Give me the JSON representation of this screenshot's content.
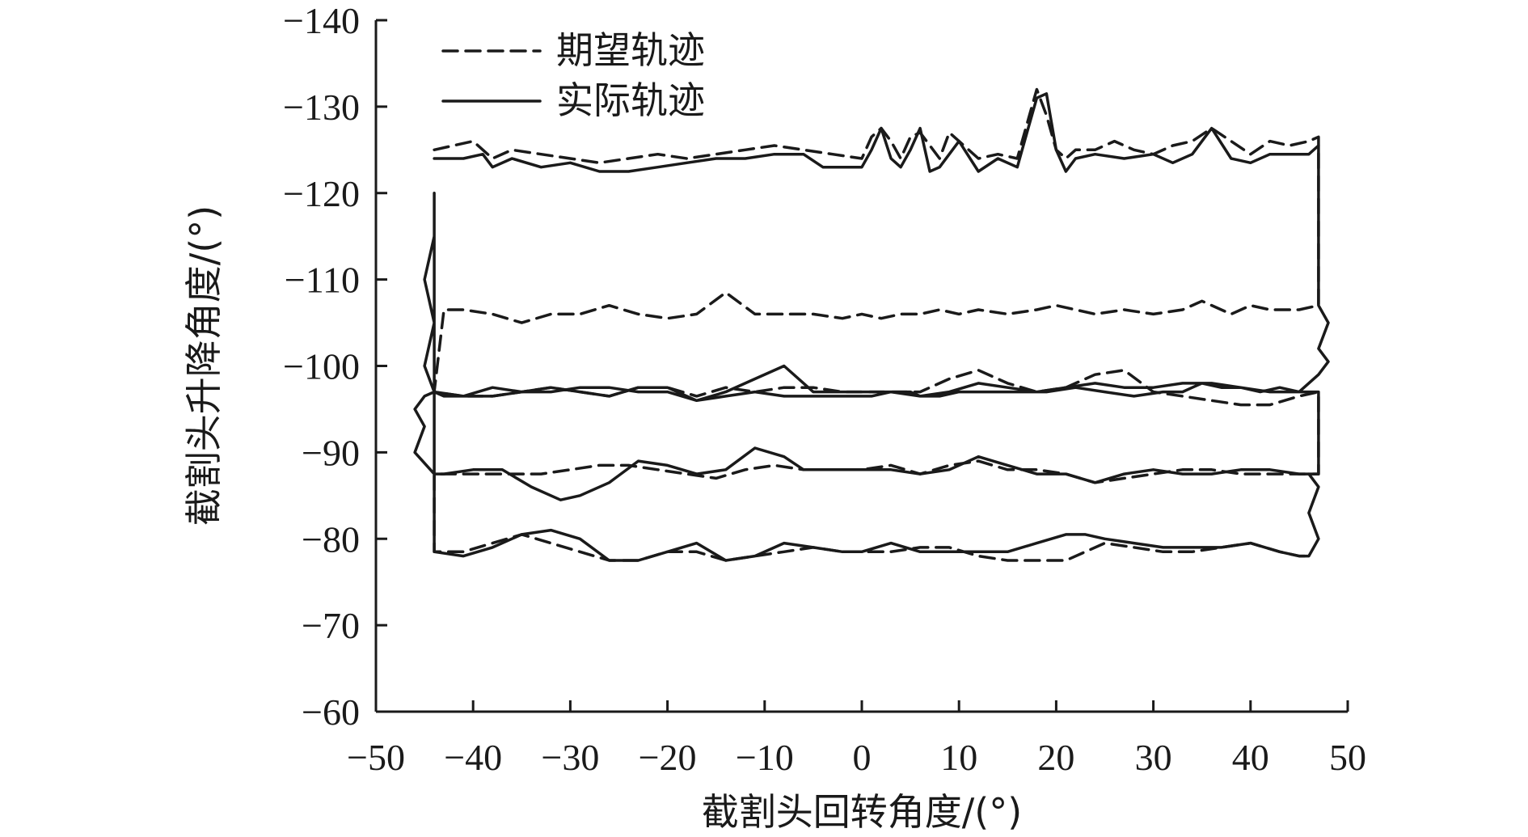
{
  "chart_data": {
    "type": "line",
    "title": "",
    "xlabel": "截割头回转角度/(°)",
    "ylabel": "截割头升降角度/(°)",
    "xlim": [
      -50,
      50
    ],
    "ylim": [
      -60,
      -140
    ],
    "xticks": [
      "−50",
      "−40",
      "−30",
      "−20",
      "−10",
      "0",
      "10",
      "20",
      "30",
      "40",
      "50"
    ],
    "yticks": [
      "−140",
      "−130",
      "−120",
      "−110",
      "−100",
      "−90",
      "−80",
      "−70",
      "−60"
    ],
    "grid": false,
    "legend_position": "top-left",
    "series": [
      {
        "name": "期望轨迹",
        "style": "dashed",
        "color": "#1a1a1a",
        "x": [
          -44,
          -40,
          -38,
          -36,
          -33,
          -30,
          -27,
          -24,
          -21,
          -18,
          -15,
          -12,
          -9,
          -6,
          -3,
          0,
          1,
          2,
          3,
          4,
          5,
          6,
          8,
          9,
          10,
          12,
          14,
          16,
          17,
          18,
          19,
          20,
          21,
          22,
          24,
          26,
          28,
          30,
          32,
          34,
          36,
          38,
          40,
          42,
          44,
          46,
          47,
          47,
          45,
          42,
          40,
          38,
          35,
          33,
          30,
          27,
          24,
          22,
          20,
          18,
          15,
          12,
          10,
          8,
          6,
          4,
          2,
          0,
          -2,
          -5,
          -8,
          -11,
          -14,
          -17,
          -20,
          -23,
          -26,
          -29,
          -32,
          -35,
          -38,
          -41,
          -43,
          -44,
          -41,
          -38,
          -35,
          -32,
          -29,
          -26,
          -23,
          -20,
          -17,
          -14,
          -11,
          -8,
          -5,
          -2,
          0,
          3,
          6,
          9,
          12,
          15,
          18,
          21,
          24,
          27,
          30,
          33,
          36,
          39,
          42,
          45,
          47,
          47,
          45,
          42,
          39,
          36,
          33,
          30,
          27,
          24,
          21,
          18,
          15,
          12,
          9,
          6,
          3,
          0,
          -3,
          -6,
          -9,
          -12,
          -15,
          -18,
          -21,
          -24,
          -27,
          -30,
          -33,
          -36,
          -39,
          -42,
          -44,
          -44,
          -41,
          -38,
          -35,
          -32,
          -29,
          -26,
          -23,
          -20,
          -17,
          -14,
          -11,
          -8,
          -5,
          -2,
          0,
          3,
          6,
          9,
          12,
          15,
          18,
          21,
          23,
          25,
          28,
          31,
          34,
          37,
          40,
          43,
          45,
          46
        ],
        "y": [
          -125,
          -126,
          -124,
          -125,
          -124.5,
          -124,
          -123.5,
          -124,
          -124.5,
          -124,
          -124.5,
          -125,
          -125.5,
          -125,
          -124.5,
          -124,
          -126.5,
          -127.5,
          -126,
          -124,
          -126.5,
          -127,
          -124,
          -127,
          -126,
          -124,
          -124.5,
          -124,
          -128,
          -132,
          -129,
          -125,
          -124,
          -125,
          -125,
          -126,
          -125,
          -124.5,
          -125.5,
          -126,
          -127.5,
          -126,
          -124.5,
          -126,
          -125.5,
          -126,
          -126.5,
          -107,
          -106.5,
          -106.5,
          -107,
          -106,
          -107.5,
          -106.5,
          -106,
          -106.5,
          -106,
          -106.5,
          -107,
          -106.5,
          -106,
          -106.5,
          -106,
          -106.5,
          -106,
          -106,
          -105.5,
          -106,
          -105.5,
          -106,
          -106,
          -106,
          -108.5,
          -106,
          -105.5,
          -106,
          -107,
          -106,
          -106,
          -105,
          -106,
          -106.5,
          -106.5,
          -97,
          -96.5,
          -96.5,
          -97,
          -97.5,
          -97,
          -96.5,
          -97.5,
          -97.5,
          -96.5,
          -97.5,
          -97,
          -97.5,
          -97.5,
          -97,
          -97,
          -97,
          -97,
          -98.5,
          -99.5,
          -98,
          -97,
          -97.5,
          -99,
          -99.5,
          -97,
          -96.5,
          -96,
          -95.5,
          -95.5,
          -96.5,
          -97,
          -87.5,
          -87.5,
          -87.5,
          -87.5,
          -88,
          -88,
          -87.5,
          -87,
          -86.5,
          -87.5,
          -88,
          -88,
          -89,
          -88.5,
          -87.5,
          -88.5,
          -88,
          -88,
          -88,
          -88.5,
          -88,
          -87,
          -87.5,
          -88,
          -88.5,
          -88.5,
          -88,
          -87.5,
          -87.5,
          -87.5,
          -87.5,
          -87.5,
          -78.5,
          -78.5,
          -79.5,
          -80.5,
          -79.5,
          -78.5,
          -77.5,
          -77.5,
          -78.5,
          -78.5,
          -77.5,
          -78,
          -78.5,
          -79,
          -78.5,
          -78.5,
          -78.5,
          -79,
          -79,
          -78,
          -77.5,
          -77.5,
          -77.5,
          -78.5,
          -79.5,
          -79,
          -78.5,
          -78.5,
          -79,
          -79.5,
          -78.5,
          -78,
          -78
        ]
      },
      {
        "name": "实际轨迹",
        "style": "solid",
        "color": "#1a1a1a",
        "x": [
          -44,
          -41,
          -39,
          -38,
          -36,
          -33,
          -30,
          -27,
          -24,
          -21,
          -18,
          -15,
          -12,
          -9,
          -6,
          -4,
          -2,
          0,
          1,
          2,
          3,
          4,
          5,
          6,
          7,
          8,
          10,
          12,
          14,
          16,
          17,
          18,
          19,
          20,
          21,
          22,
          24,
          27,
          30,
          32,
          34,
          36,
          38,
          40,
          42,
          44,
          46,
          47,
          47,
          48,
          47,
          48,
          47,
          45,
          43,
          41,
          39,
          37,
          35,
          34,
          33,
          31,
          28,
          25,
          22,
          19,
          16,
          13,
          10,
          8,
          6,
          5,
          4,
          3,
          1,
          -2,
          -5,
          -8,
          -11,
          -14,
          -17,
          -20,
          -23,
          -26,
          -29,
          -32,
          -35,
          -38,
          -41,
          -43,
          -44,
          -45,
          -44,
          -45,
          -44,
          -44,
          -44,
          -41,
          -38,
          -35,
          -32,
          -29,
          -26,
          -23,
          -20,
          -17,
          -14,
          -11,
          -8,
          -5,
          -2,
          0,
          3,
          6,
          9,
          12,
          15,
          18,
          21,
          24,
          27,
          30,
          33,
          36,
          39,
          42,
          45,
          47,
          47,
          45,
          42,
          39,
          36,
          33,
          30,
          27,
          24,
          21,
          18,
          15,
          12,
          9,
          6,
          3,
          0,
          -3,
          -6,
          -8,
          -11,
          -14,
          -17,
          -20,
          -23,
          -26,
          -29,
          -31,
          -34,
          -37,
          -40,
          -43,
          -44,
          -46,
          -45,
          -46,
          -45,
          -44,
          -44,
          -44,
          -41,
          -38,
          -35,
          -32,
          -29,
          -26,
          -23,
          -20,
          -17,
          -14,
          -11,
          -8,
          -5,
          -2,
          0,
          3,
          6,
          9,
          12,
          15,
          18,
          21,
          23,
          25,
          28,
          31,
          34,
          37,
          40,
          43,
          45,
          46,
          47,
          46,
          47,
          46
        ],
        "y": [
          -124,
          -124,
          -124.5,
          -123,
          -124,
          -123,
          -123.5,
          -122.5,
          -122.5,
          -123,
          -123.5,
          -124,
          -124,
          -124.5,
          -124.5,
          -123,
          -123,
          -123,
          -125,
          -127.5,
          -124,
          -123,
          -125,
          -127.5,
          -122.5,
          -123,
          -126,
          -122.5,
          -124,
          -123,
          -127,
          -131,
          -131.5,
          -125,
          -122.5,
          -124,
          -124.5,
          -124,
          -124.5,
          -123.5,
          -124.5,
          -127.5,
          -124,
          -123.5,
          -124.5,
          -124.5,
          -124.5,
          -125.5,
          -107,
          -105,
          -102,
          -100.5,
          -99,
          -97,
          -97.5,
          -97,
          -97.5,
          -97.5,
          -98,
          -97.5,
          -97,
          -97,
          -96.5,
          -97,
          -97.5,
          -97,
          -97,
          -97,
          -97,
          -96.5,
          -96.5,
          -97,
          -97,
          -97,
          -96.5,
          -96.5,
          -96.5,
          -96.5,
          -97,
          -96.5,
          -96,
          -97,
          -97,
          -97.5,
          -97.5,
          -97,
          -97,
          -97.5,
          -96.5,
          -96.5,
          -97,
          -100,
          -105,
          -110,
          -115,
          -120,
          -97,
          -96.5,
          -96.5,
          -97,
          -97.5,
          -97,
          -96.5,
          -97.5,
          -97.5,
          -96,
          -97,
          -98.5,
          -100,
          -97,
          -97,
          -97,
          -97,
          -96.5,
          -97,
          -98,
          -97.5,
          -97,
          -97.5,
          -98,
          -97.5,
          -97.5,
          -98,
          -98,
          -97.5,
          -97,
          -97,
          -97,
          -87.5,
          -87.5,
          -88,
          -88,
          -87.5,
          -87.5,
          -88,
          -87.5,
          -86.5,
          -87.5,
          -87.5,
          -88.5,
          -89.5,
          -88,
          -87.5,
          -88,
          -88,
          -88,
          -88,
          -89.5,
          -90.5,
          -88,
          -87.5,
          -88.5,
          -89,
          -86.5,
          -85,
          -84.5,
          -86,
          -88,
          -88,
          -87.5,
          -87.5,
          -90,
          -93,
          -95,
          -96.5,
          -97,
          -97,
          -78.5,
          -78,
          -79,
          -80.5,
          -81,
          -80,
          -77.5,
          -77.5,
          -78.5,
          -79.5,
          -77.5,
          -78,
          -79.5,
          -79,
          -78.5,
          -78.5,
          -79.5,
          -78.5,
          -78.5,
          -78.5,
          -78.5,
          -79.5,
          -80.5,
          -80.5,
          -80,
          -79.5,
          -79,
          -79,
          -79,
          -79.5,
          -78.5,
          -78,
          -78,
          -80,
          -83,
          -86,
          -87.5
        ]
      }
    ]
  }
}
